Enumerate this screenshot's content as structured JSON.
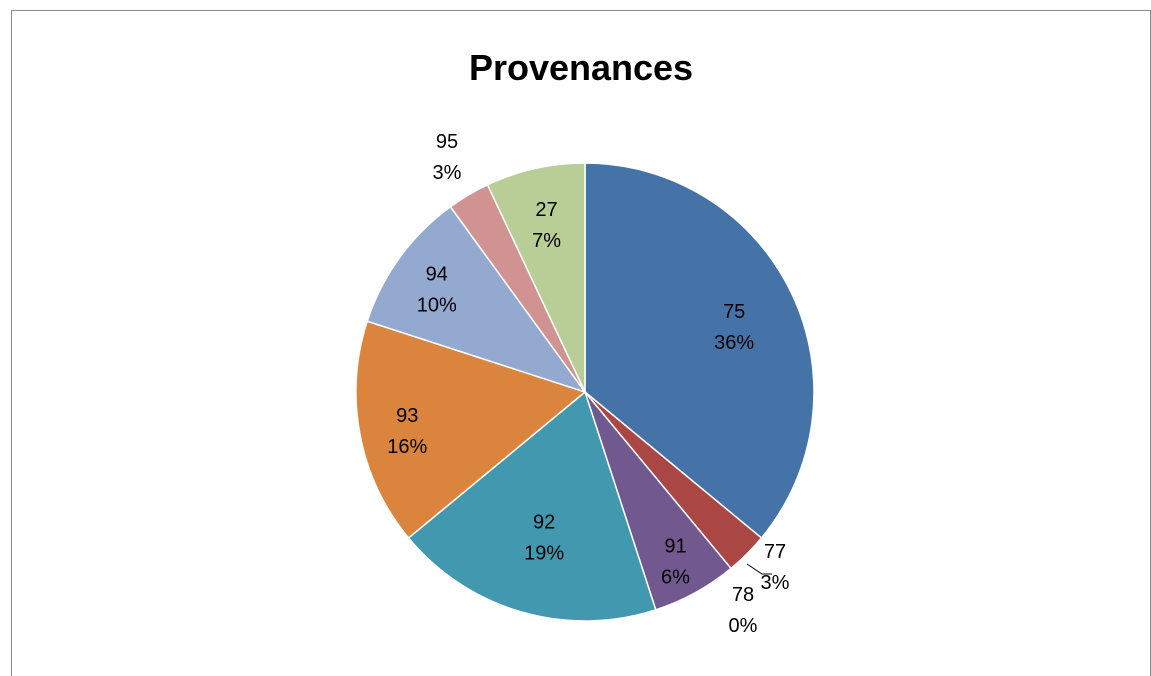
{
  "chart_data": {
    "type": "pie",
    "title": "Provenances",
    "slices": [
      {
        "category": "75",
        "percent_label": "36%",
        "value": 36,
        "color": "#4572A7"
      },
      {
        "category": "77",
        "percent_label": "3%",
        "value": 3,
        "color": "#AA4643"
      },
      {
        "category": "78",
        "percent_label": "0%",
        "value": 0,
        "color": "#89A54E"
      },
      {
        "category": "91",
        "percent_label": "6%",
        "value": 6,
        "color": "#71588F"
      },
      {
        "category": "92",
        "percent_label": "19%",
        "value": 19,
        "color": "#4198AF"
      },
      {
        "category": "93",
        "percent_label": "16%",
        "value": 16,
        "color": "#DB843D"
      },
      {
        "category": "94",
        "percent_label": "10%",
        "value": 10,
        "color": "#93A9CF"
      },
      {
        "category": "95",
        "percent_label": "3%",
        "value": 3,
        "color": "#D19392"
      },
      {
        "category": "27",
        "percent_label": "7%",
        "value": 7,
        "color": "#B9CD96"
      }
    ],
    "legend": "none",
    "start_angle": "12 o'clock",
    "direction": "clockwise"
  }
}
